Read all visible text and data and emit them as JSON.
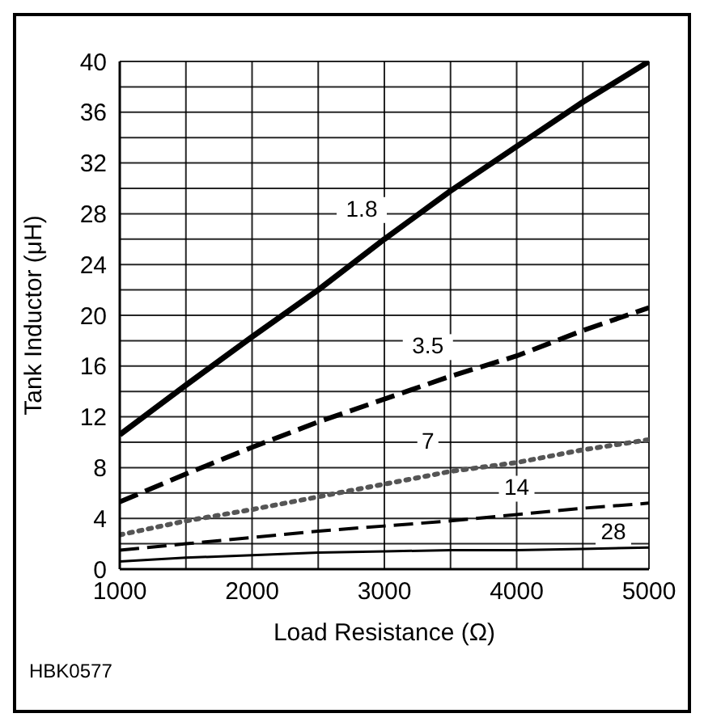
{
  "chart_data": {
    "type": "line",
    "xlabel": "Load Resistance (Ω)",
    "ylabel": "Tank Inductor (μH)",
    "x": [
      1000,
      1500,
      2000,
      2500,
      3000,
      3500,
      4000,
      4500,
      5000
    ],
    "series": [
      {
        "name": "1.8",
        "color": "#000000",
        "line_style": "solid",
        "values": [
          10.6,
          14.5,
          18.3,
          22.0,
          26.0,
          29.8,
          33.3,
          36.8,
          40.0
        ]
      },
      {
        "name": "3.5",
        "color": "#000000",
        "line_style": "dashed",
        "values": [
          5.3,
          7.5,
          9.6,
          11.6,
          13.4,
          15.2,
          16.8,
          18.8,
          20.6
        ]
      },
      {
        "name": "7",
        "color": "#555555",
        "line_style": "dotted",
        "values": [
          2.7,
          3.8,
          4.7,
          5.7,
          6.7,
          7.7,
          8.4,
          9.4,
          10.2
        ]
      },
      {
        "name": "14",
        "color": "#000000",
        "line_style": "dashed",
        "values": [
          1.5,
          2.0,
          2.5,
          3.0,
          3.4,
          3.8,
          4.3,
          4.8,
          5.2
        ]
      },
      {
        "name": "28",
        "color": "#000000",
        "line_style": "solid",
        "values": [
          0.6,
          0.9,
          1.1,
          1.3,
          1.4,
          1.5,
          1.5,
          1.6,
          1.7
        ]
      }
    ],
    "xlim": [
      1000,
      5000
    ],
    "xticks": [
      1000,
      2000,
      3000,
      4000,
      5000
    ],
    "ylim": [
      0,
      40
    ],
    "yticks": [
      0,
      4,
      8,
      12,
      16,
      20,
      24,
      28,
      32,
      36,
      40
    ],
    "grid": true,
    "marker": "none",
    "annotations": [
      "HBK0577"
    ]
  }
}
